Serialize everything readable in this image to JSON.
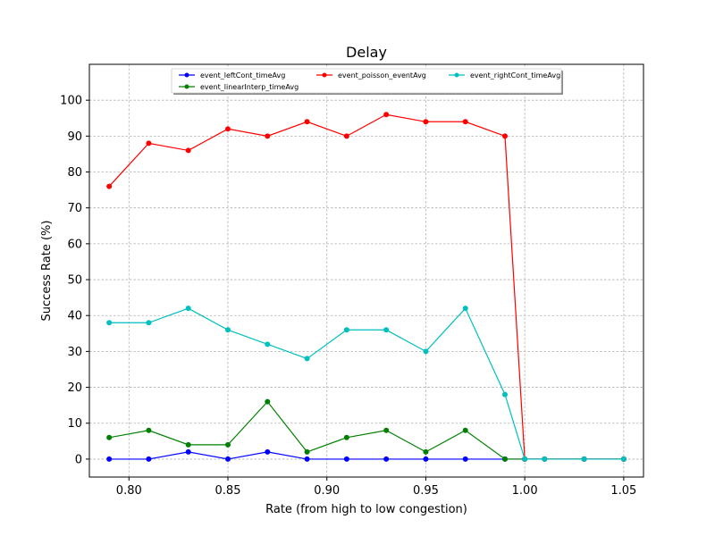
{
  "chart_data": {
    "type": "line",
    "title": "Delay",
    "xlabel": "Rate (from high to low congestion)",
    "ylabel": "Success Rate (%)",
    "xlim": [
      0.78,
      1.06
    ],
    "ylim": [
      -5,
      110
    ],
    "xticks": [
      0.8,
      0.85,
      0.9,
      0.95,
      1.0,
      1.05
    ],
    "xtick_labels": [
      "0.80",
      "0.85",
      "0.90",
      "0.95",
      "1.00",
      "1.05"
    ],
    "yticks": [
      0,
      10,
      20,
      30,
      40,
      50,
      60,
      70,
      80,
      90,
      100
    ],
    "ytick_labels": [
      "0",
      "10",
      "20",
      "30",
      "40",
      "50",
      "60",
      "70",
      "80",
      "90",
      "100"
    ],
    "grid": true,
    "legend_position": "top-center",
    "series": [
      {
        "name": "event_leftCont_timeAvg",
        "color": "#0000ff",
        "x": [
          0.79,
          0.81,
          0.83,
          0.85,
          0.87,
          0.89,
          0.91,
          0.93,
          0.95,
          0.97,
          0.99,
          1.0,
          1.01,
          1.03,
          1.05
        ],
        "y": [
          0,
          0,
          2,
          0,
          2,
          0,
          0,
          0,
          0,
          0,
          0,
          0,
          0,
          0,
          0
        ]
      },
      {
        "name": "event_linearInterp_timeAvg",
        "color": "#008000",
        "x": [
          0.79,
          0.81,
          0.83,
          0.85,
          0.87,
          0.89,
          0.91,
          0.93,
          0.95,
          0.97,
          0.99,
          1.0,
          1.01,
          1.03,
          1.05
        ],
        "y": [
          6,
          8,
          4,
          4,
          16,
          2,
          6,
          8,
          2,
          8,
          0,
          0,
          0,
          0,
          0
        ]
      },
      {
        "name": "event_poisson_eventAvg",
        "color": "#ff0000",
        "x": [
          0.79,
          0.81,
          0.83,
          0.85,
          0.87,
          0.89,
          0.91,
          0.93,
          0.95,
          0.97,
          0.99,
          1.0,
          1.01,
          1.03,
          1.05
        ],
        "y": [
          76,
          88,
          86,
          92,
          90,
          94,
          90,
          96,
          94,
          94,
          90,
          0,
          0,
          0,
          0
        ]
      },
      {
        "name": "event_rightCont_timeAvg",
        "color": "#00bfbf",
        "x": [
          0.79,
          0.81,
          0.83,
          0.85,
          0.87,
          0.89,
          0.91,
          0.93,
          0.95,
          0.97,
          0.99,
          1.0,
          1.01,
          1.03,
          1.05
        ],
        "y": [
          38,
          38,
          42,
          36,
          32,
          28,
          36,
          36,
          30,
          42,
          18,
          0,
          0,
          0,
          0
        ]
      }
    ]
  }
}
